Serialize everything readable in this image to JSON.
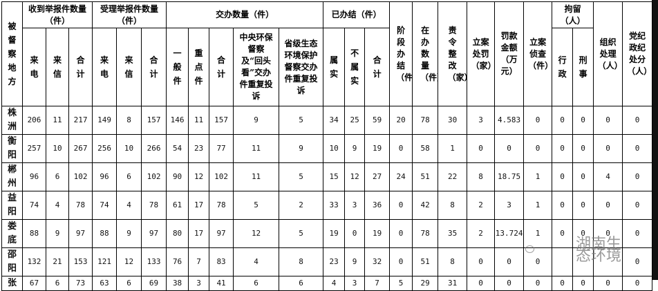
{
  "headers": {
    "place": "被督察地方",
    "received": "收到举报件数量（件）",
    "accepted": "受理举报件数量（件）",
    "assigned": "交办数量（件）",
    "closed": "已办结（件）",
    "stage_closed": "阶段办结（件）",
    "in_progress": "在办数量（件）",
    "rectify": "责令整改（家）",
    "penalty_cases": "立案处罚（家）",
    "fine_amount": "罚款金额（万元）",
    "investigation": "立案侦查（件）",
    "detention": "拘留（人）",
    "org_handling": "组织处理（人）",
    "discipline": "党纪政纪处分（人）",
    "phone": "来电",
    "letter": "来信",
    "total": "合计",
    "general": "一般件",
    "key": "重点件",
    "central_repeat": "中央环保督察及“回头看”交办件重复投诉",
    "provincial_repeat": "省级生态环境保护督察交办件重复投诉",
    "verified": "属实",
    "unverified": "不属实",
    "admin": "行政",
    "criminal": "刑事"
  },
  "rows": [
    {
      "place": "株洲",
      "v": [
        "206",
        "11",
        "217",
        "149",
        "8",
        "157",
        "146",
        "11",
        "157",
        "9",
        "5",
        "34",
        "25",
        "59",
        "20",
        "78",
        "30",
        "3",
        "4.583",
        "0",
        "0",
        "0",
        "0",
        "0"
      ]
    },
    {
      "place": "衡阳",
      "v": [
        "257",
        "10",
        "267",
        "256",
        "10",
        "266",
        "54",
        "23",
        "77",
        "11",
        "9",
        "10",
        "9",
        "19",
        "0",
        "58",
        "1",
        "0",
        "0",
        "0",
        "0",
        "0",
        "0",
        "0"
      ]
    },
    {
      "place": "郴州",
      "v": [
        "96",
        "6",
        "102",
        "96",
        "6",
        "102",
        "90",
        "12",
        "102",
        "11",
        "5",
        "15",
        "12",
        "27",
        "24",
        "51",
        "22",
        "8",
        "18.75",
        "1",
        "0",
        "0",
        "4",
        "0"
      ]
    },
    {
      "place": "益阳",
      "v": [
        "74",
        "4",
        "78",
        "74",
        "4",
        "78",
        "61",
        "17",
        "78",
        "5",
        "2",
        "33",
        "3",
        "36",
        "0",
        "42",
        "8",
        "2",
        "3",
        "1",
        "0",
        "0",
        "0",
        "0"
      ]
    },
    {
      "place": "娄底",
      "v": [
        "88",
        "9",
        "97",
        "88",
        "9",
        "97",
        "80",
        "17",
        "97",
        "12",
        "5",
        "19",
        "0",
        "19",
        "0",
        "78",
        "35",
        "2",
        "13.724",
        "1",
        "0",
        "0",
        "0",
        "0"
      ]
    },
    {
      "place": "邵阳",
      "v": [
        "132",
        "21",
        "153",
        "121",
        "12",
        "133",
        "76",
        "7",
        "83",
        "4",
        "8",
        "23",
        "9",
        "32",
        "0",
        "51",
        "8",
        "0",
        "0",
        "0",
        "",
        "",
        "",
        "0"
      ]
    },
    {
      "place": "张",
      "v": [
        "67",
        "6",
        "73",
        "63",
        "6",
        "69",
        "38",
        "3",
        "41",
        "6",
        "6",
        "4",
        "3",
        "7",
        "5",
        "29",
        "31",
        "0",
        "0",
        "0",
        "0",
        "0",
        "0",
        "0"
      ]
    }
  ],
  "watermark": "湖南生态环境"
}
